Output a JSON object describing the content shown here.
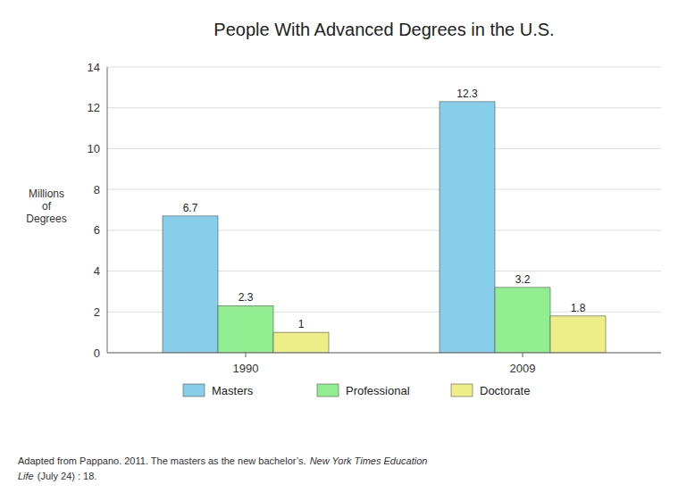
{
  "chart_data": {
    "type": "bar",
    "title": "People With Advanced Degrees in the U.S.",
    "ylabel": "Millions\nof\nDegrees",
    "categories": [
      "1990",
      "2009"
    ],
    "series": [
      {
        "name": "Masters",
        "color": "#87CEEB",
        "values": [
          6.7,
          12.3
        ]
      },
      {
        "name": "Professional",
        "color": "#90EE90",
        "values": [
          2.3,
          3.2
        ]
      },
      {
        "name": "Doctorate",
        "color": "#EEEE88",
        "values": [
          1.0,
          1.8
        ]
      }
    ],
    "ylim": [
      0,
      14
    ],
    "yticks": [
      0,
      2,
      4,
      6,
      8,
      10,
      12,
      14
    ],
    "grid": true,
    "legend": "bottom",
    "data_labels": true,
    "annotations": [
      "Adapted from Pappano. 2011. The masters as the new bachelor’s.",
      "New York Times Education",
      "Life",
      "(July 24) : 18."
    ]
  }
}
